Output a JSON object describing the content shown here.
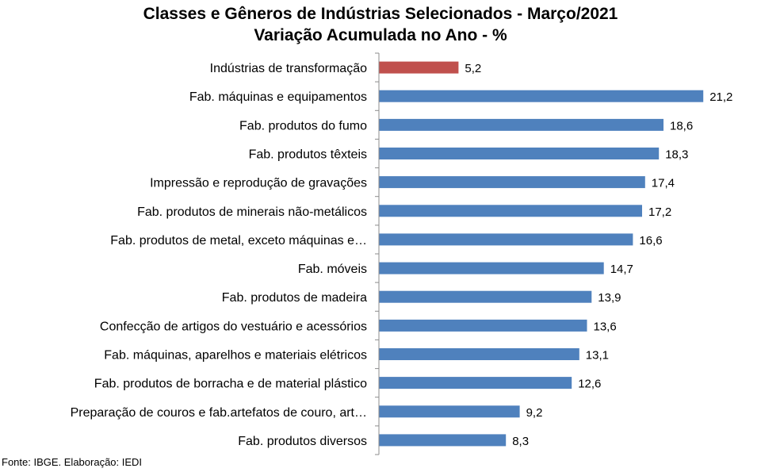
{
  "chart_data": {
    "type": "bar",
    "orientation": "horizontal",
    "title": "Classes e Gêneros de Indústrias Selecionados - Março/2021",
    "subtitle": "Variação Acumulada no Ano - %",
    "categories": [
      "Indústrias de transformação",
      "Fab. máquinas e equipamentos",
      "Fab. produtos do fumo",
      "Fab. produtos têxteis",
      "Impressão e reprodução de gravações",
      "Fab. produtos de minerais não-metálicos",
      "Fab. produtos de metal, exceto máquinas e…",
      "Fab. móveis",
      "Fab. produtos de madeira",
      "Confecção de artigos do vestuário e acessórios",
      "Fab. máquinas, aparelhos e materiais elétricos",
      "Fab. produtos de borracha e de material plástico",
      "Preparação de couros e fab.artefatos de couro, art…",
      "Fab. produtos diversos"
    ],
    "values": [
      5.2,
      21.2,
      18.6,
      18.3,
      17.4,
      17.2,
      16.6,
      14.7,
      13.9,
      13.6,
      13.1,
      12.6,
      9.2,
      8.3
    ],
    "value_labels": [
      "5,2",
      "21,2",
      "18,6",
      "18,3",
      "17,4",
      "17,2",
      "16,6",
      "14,7",
      "13,9",
      "13,6",
      "13,1",
      "12,6",
      "9,2",
      "8,3"
    ],
    "xlim": [
      0,
      22
    ],
    "colors": {
      "highlight": "#C0504D",
      "default": "#4F81BD"
    },
    "grid": false,
    "legend": "none"
  },
  "source": "Fonte: IBGE. Elaboração: IEDI"
}
